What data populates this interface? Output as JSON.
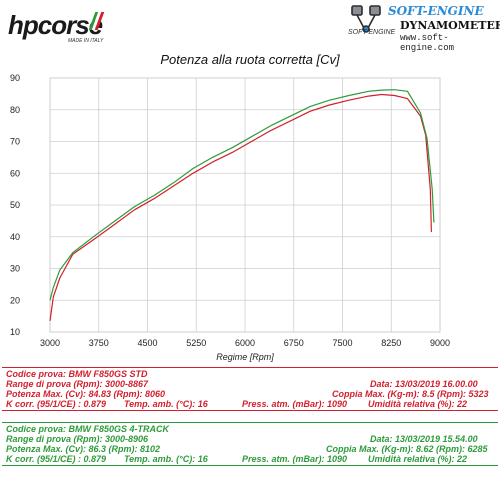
{
  "logos": {
    "hp_wordmark": "hpcorse",
    "hp_tagline": "MADE IN ITALY",
    "se_title": "SOFT-ENGINE",
    "se_subtitle": "DYNAMOMETERS",
    "se_brand": "SOFT-ENGINE",
    "se_url": "www.soft-engine.com"
  },
  "colors": {
    "std": "#d21f2d",
    "track": "#2e9b3a",
    "flag_green": "#2e9b3a",
    "flag_white": "#ffffff",
    "flag_red": "#d21f2d",
    "grid": "#cfcfcf"
  },
  "chart_data": {
    "type": "line",
    "title": "Potenza alla ruota corretta [Cv]",
    "xlabel": "Regime [Rpm]",
    "ylabel": "",
    "xlim": [
      3000,
      9000
    ],
    "ylim": [
      10,
      90
    ],
    "xticks": [
      3000,
      3750,
      4500,
      5250,
      6000,
      6750,
      7500,
      8250,
      9000
    ],
    "yticks": [
      10,
      20,
      30,
      40,
      50,
      60,
      70,
      80,
      90
    ],
    "grid": true,
    "series": [
      {
        "name": "BMW F850GS STD",
        "color": "#d21f2d",
        "x": [
          3000,
          3050,
          3150,
          3350,
          3700,
          4000,
          4300,
          4600,
          4900,
          5200,
          5500,
          5800,
          6100,
          6400,
          6700,
          7000,
          7300,
          7600,
          7900,
          8100,
          8300,
          8500,
          8700,
          8780,
          8850,
          8867
        ],
        "y": [
          13.5,
          21,
          27,
          34.5,
          39.5,
          44,
          48.5,
          52,
          56,
          60,
          63.5,
          66.5,
          70,
          73.5,
          76.5,
          79.5,
          81.5,
          83,
          84.3,
          84.8,
          84.5,
          83.5,
          78,
          72,
          55,
          41.5
        ]
      },
      {
        "name": "BMW F850GS 4-TRACK",
        "color": "#2e9b3a",
        "x": [
          3000,
          3050,
          3150,
          3350,
          3700,
          4000,
          4300,
          4600,
          4900,
          5200,
          5500,
          5800,
          6100,
          6400,
          6700,
          7000,
          7300,
          7600,
          7900,
          8100,
          8300,
          8500,
          8700,
          8800,
          8880,
          8906
        ],
        "y": [
          20,
          24,
          29.5,
          35,
          40.5,
          45,
          49.5,
          53,
          57,
          61.5,
          65,
          68,
          71.5,
          75,
          78,
          81,
          83,
          84.5,
          85.8,
          86.2,
          86.3,
          85.8,
          79,
          71,
          55,
          44.5
        ]
      }
    ]
  },
  "legend_std": {
    "codice": "Codice prova: BMW F850GS STD",
    "range": "Range di prova (Rpm): 3000-8867",
    "data": "Data: 13/03/2019   16.00.00",
    "potenza": "Potenza Max. (Cv): 84.83  (Rpm): 8060",
    "coppia": "Coppia Max. (Kg-m): 8.5   (Rpm): 5323",
    "kcorr": "K corr. (95/1/CE) : 0.879",
    "temp": "Temp. amb. (°C): 16",
    "press": "Press. atm. (mBar): 1090",
    "umid": "Umidità relativa (%): 22"
  },
  "legend_track": {
    "codice": "Codice prova: BMW F850GS 4-TRACK",
    "range": "Range di prova (Rpm): 3000-8906",
    "data": "Data: 13/03/2019   15.54.00",
    "potenza": "Potenza Max. (Cv): 86.3  (Rpm): 8102",
    "coppia": "Coppia Max. (Kg-m): 8.62   (Rpm): 6285",
    "kcorr": "K corr. (95/1/CE) : 0.879",
    "temp": "Temp. amb. (°C): 16",
    "press": "Press. atm. (mBar): 1090",
    "umid": "Umidità relativa (%): 22"
  }
}
